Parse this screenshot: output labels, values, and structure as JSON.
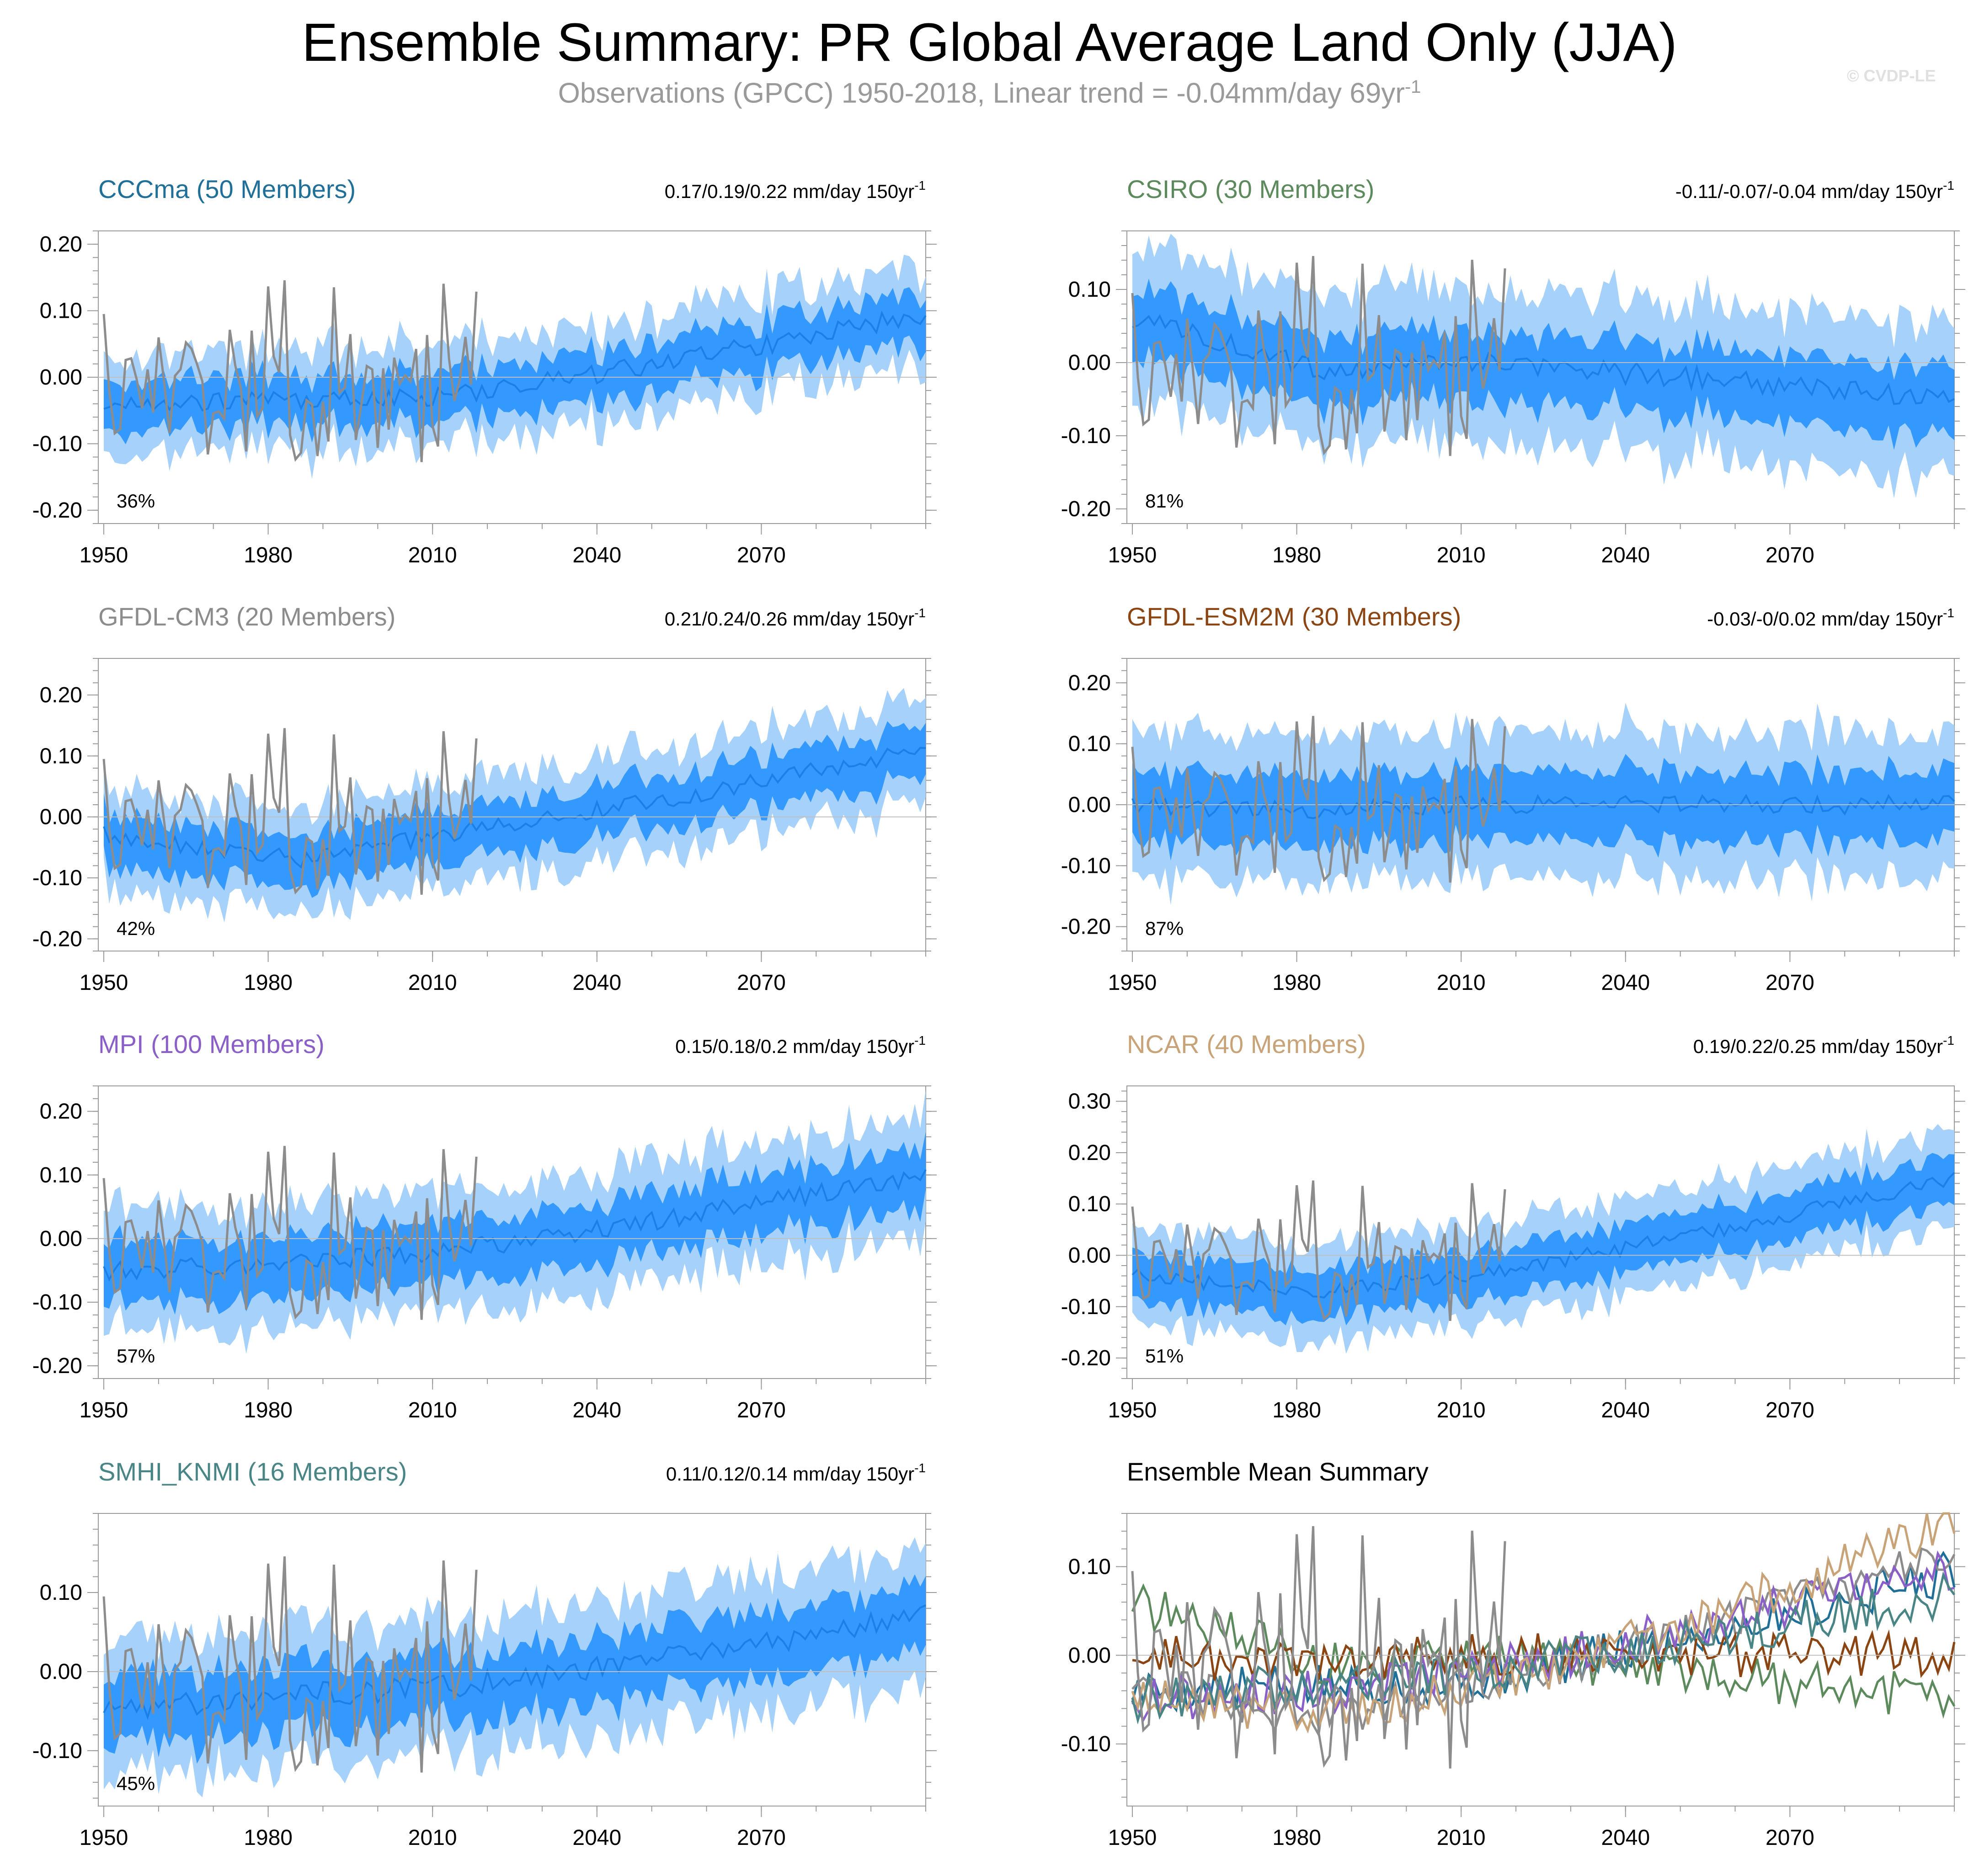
{
  "page": {
    "title": "Ensemble Summary: PR Global Average Land Only (JJA)",
    "subtitle_prefix": "Observations (GPCC) 1950-2018, Linear trend = -0.04mm/day 69yr",
    "subtitle_sup": "-1",
    "watermark": "© CVDP-LE"
  },
  "colors": {
    "inner_band": "#3399ff",
    "outer_band": "#a6d1fa",
    "ens_mean": "#1a7fe6",
    "obs": "#8c8c8c",
    "zero_line": "#bfbfbf"
  },
  "chart_data": [
    {
      "type": "line",
      "title": "CCCma (50 Members)",
      "title_color": "#1f6f99",
      "stat": "0.17/0.19/0.22 mm/day 150yr",
      "stat_sup": "-1",
      "pct": "36%",
      "xlim": [
        1949,
        2100
      ],
      "ylim": [
        -0.22,
        0.22
      ],
      "yticks": [
        -0.2,
        -0.1,
        0.0,
        0.1,
        0.2
      ],
      "ytick_labels": [
        "-0.20",
        "-0.10",
        "0.00",
        "0.10",
        "0.20"
      ],
      "xticks": [
        1950,
        1980,
        2010,
        2040,
        2070
      ],
      "xtick_labels": [
        "1950",
        "1980",
        "2010",
        "2040",
        "2070"
      ],
      "mean_start": -0.04,
      "mean_mid": -0.03,
      "mean_end": 0.095,
      "mean_dip": -0.035,
      "inner_hw": 0.035,
      "outer_hw": 0.065
    },
    {
      "type": "line",
      "title": "CSIRO (30 Members)",
      "title_color": "#5c8a5c",
      "stat": "-0.11/-0.07/-0.04 mm/day 150yr",
      "stat_sup": "-1",
      "pct": "81%",
      "xlim": [
        1949,
        2100
      ],
      "ylim": [
        -0.22,
        0.18
      ],
      "yticks": [
        -0.2,
        -0.1,
        0.0,
        0.1
      ],
      "ytick_labels": [
        "-0.20",
        "-0.10",
        "0.00",
        "0.10"
      ],
      "xticks": [
        1950,
        1980,
        2010,
        2040,
        2070
      ],
      "xtick_labels": [
        "1950",
        "1980",
        "2010",
        "2040",
        "2070"
      ],
      "mean_start": 0.06,
      "mean_mid": 0.0,
      "mean_end": -0.05,
      "mean_dip": -0.01,
      "inner_hw": 0.045,
      "outer_hw": 0.095
    },
    {
      "type": "line",
      "title": "GFDL-CM3 (20 Members)",
      "title_color": "#8c8c8c",
      "stat": "0.21/0.24/0.26 mm/day 150yr",
      "stat_sup": "-1",
      "pct": "42%",
      "xlim": [
        1949,
        2100
      ],
      "ylim": [
        -0.22,
        0.26
      ],
      "yticks": [
        -0.2,
        -0.1,
        0.0,
        0.1,
        0.2
      ],
      "ytick_labels": [
        "-0.20",
        "-0.10",
        "0.00",
        "0.10",
        "0.20"
      ],
      "xticks": [
        1950,
        1980,
        2010,
        2040,
        2070
      ],
      "xtick_labels": [
        "1950",
        "1980",
        "2010",
        "2040",
        "2070"
      ],
      "mean_start": -0.03,
      "mean_mid": -0.03,
      "mean_end": 0.11,
      "mean_dip": -0.07,
      "inner_hw": 0.04,
      "outer_hw": 0.075
    },
    {
      "type": "line",
      "title": "GFDL-ESM2M (30 Members)",
      "title_color": "#8b4513",
      "stat": "-0.03/-0/0.02 mm/day 150yr",
      "stat_sup": "-1",
      "pct": "87%",
      "xlim": [
        1949,
        2100
      ],
      "ylim": [
        -0.24,
        0.24
      ],
      "yticks": [
        -0.2,
        -0.1,
        0.0,
        0.1,
        0.2
      ],
      "ytick_labels": [
        "-0.20",
        "-0.10",
        "0.00",
        "0.10",
        "0.20"
      ],
      "xticks": [
        1950,
        1980,
        2010,
        2040,
        2070
      ],
      "xtick_labels": [
        "1950",
        "1980",
        "2010",
        "2040",
        "2070"
      ],
      "mean_start": 0.0,
      "mean_mid": 0.0,
      "mean_end": 0.0,
      "mean_dip": -0.01,
      "inner_hw": 0.055,
      "outer_hw": 0.11
    },
    {
      "type": "line",
      "title": "MPI (100 Members)",
      "title_color": "#8a5fc8",
      "stat": "0.15/0.18/0.2 mm/day 150yr",
      "stat_sup": "-1",
      "pct": "57%",
      "xlim": [
        1949,
        2100
      ],
      "ylim": [
        -0.22,
        0.24
      ],
      "yticks": [
        -0.2,
        -0.1,
        0.0,
        0.1,
        0.2
      ],
      "ytick_labels": [
        "-0.20",
        "-0.10",
        "0.00",
        "0.10",
        "0.20"
      ],
      "xticks": [
        1950,
        1980,
        2010,
        2040,
        2070
      ],
      "xtick_labels": [
        "1950",
        "1980",
        "2010",
        "2040",
        "2070"
      ],
      "mean_start": -0.05,
      "mean_mid": -0.02,
      "mean_end": 0.1,
      "mean_dip": -0.04,
      "inner_hw": 0.045,
      "outer_hw": 0.085
    },
    {
      "type": "line",
      "title": "NCAR (40 Members)",
      "title_color": "#c8a378",
      "stat": "0.19/0.22/0.25 mm/day 150yr",
      "stat_sup": "-1",
      "pct": "51%",
      "xlim": [
        1949,
        2100
      ],
      "ylim": [
        -0.24,
        0.33
      ],
      "yticks": [
        -0.2,
        -0.1,
        0.0,
        0.1,
        0.2,
        0.3
      ],
      "ytick_labels": [
        "-0.20",
        "-0.10",
        "0.00",
        "0.10",
        "0.20",
        "0.30"
      ],
      "xticks": [
        1950,
        1980,
        2010,
        2040,
        2070
      ],
      "xtick_labels": [
        "1950",
        "1980",
        "2010",
        "2040",
        "2070"
      ],
      "mean_start": -0.04,
      "mean_mid": -0.04,
      "mean_end": 0.15,
      "mean_dip": -0.07,
      "inner_hw": 0.045,
      "outer_hw": 0.085
    },
    {
      "type": "line",
      "title": "SMHI_KNMI (16 Members)",
      "title_color": "#4a8585",
      "stat": "0.11/0.12/0.14 mm/day 150yr",
      "stat_sup": "-1",
      "pct": "45%",
      "xlim": [
        1949,
        2100
      ],
      "ylim": [
        -0.17,
        0.2
      ],
      "yticks": [
        -0.1,
        0.0,
        0.1
      ],
      "ytick_labels": [
        "-0.10",
        "0.00",
        "0.10"
      ],
      "xticks": [
        1950,
        1980,
        2010,
        2040,
        2070
      ],
      "xtick_labels": [
        "1950",
        "1980",
        "2010",
        "2040",
        "2070"
      ],
      "mean_start": -0.05,
      "mean_mid": -0.02,
      "mean_end": 0.07,
      "mean_dip": -0.03,
      "inner_hw": 0.04,
      "outer_hw": 0.075
    },
    {
      "type": "line",
      "title": "Ensemble Mean Summary",
      "title_color": "#000000",
      "xlim": [
        1949,
        2100
      ],
      "ylim": [
        -0.17,
        0.16
      ],
      "yticks": [
        -0.1,
        0.0,
        0.1
      ],
      "ytick_labels": [
        "-0.10",
        "0.00",
        "0.10"
      ],
      "xticks": [
        1950,
        1980,
        2010,
        2040,
        2070
      ],
      "xtick_labels": [
        "1950",
        "1980",
        "2010",
        "2040",
        "2070"
      ],
      "series": [
        {
          "name": "CCCma",
          "color": "#1f6f99",
          "start": -0.04,
          "mid": -0.03,
          "end": 0.095,
          "dip": -0.035
        },
        {
          "name": "CSIRO",
          "color": "#5c8a5c",
          "start": 0.06,
          "mid": 0.0,
          "end": -0.05,
          "dip": -0.01
        },
        {
          "name": "GFDL-CM3",
          "color": "#8c8c8c",
          "start": -0.03,
          "mid": -0.03,
          "end": 0.11,
          "dip": -0.07
        },
        {
          "name": "GFDL-ESM2M",
          "color": "#8b4513",
          "start": 0.0,
          "mid": 0.0,
          "end": 0.0,
          "dip": -0.01
        },
        {
          "name": "MPI",
          "color": "#8a5fc8",
          "start": -0.05,
          "mid": -0.02,
          "end": 0.1,
          "dip": -0.04
        },
        {
          "name": "NCAR",
          "color": "#c8a378",
          "start": -0.04,
          "mid": -0.04,
          "end": 0.15,
          "dip": -0.07
        },
        {
          "name": "SMHI_KNMI",
          "color": "#4a8585",
          "start": -0.05,
          "mid": -0.02,
          "end": 0.07,
          "dip": -0.03
        }
      ]
    }
  ]
}
